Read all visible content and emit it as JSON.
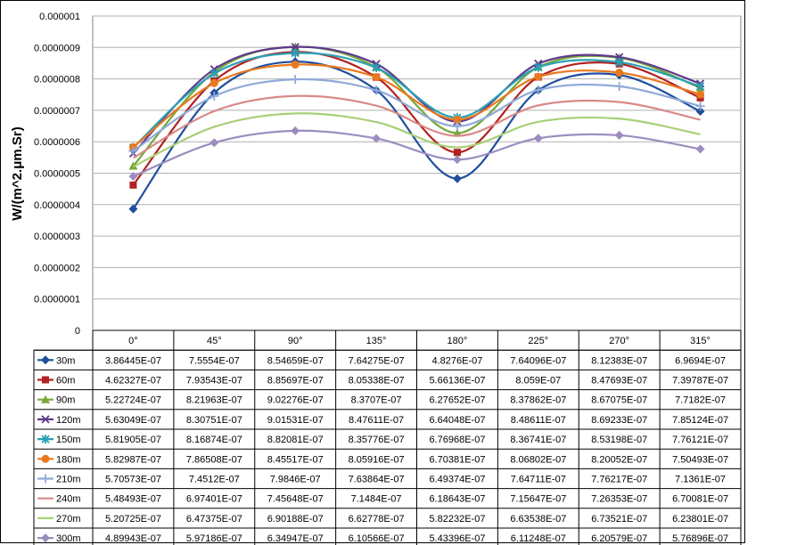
{
  "chart_data": {
    "type": "line",
    "ylabel": "W/(m^2.μm.Sr)",
    "ylim": [
      0,
      1e-06
    ],
    "yticks": [
      "0",
      "0.0000001",
      "0.0000002",
      "0.0000003",
      "0.0000004",
      "0.0000005",
      "0.0000006",
      "0.0000007",
      "0.0000008",
      "0.0000009",
      "0.000001"
    ],
    "ytick_values": [
      0,
      1e-07,
      2e-07,
      3e-07,
      4e-07,
      5e-07,
      6e-07,
      7e-07,
      8e-07,
      9e-07,
      1e-06
    ],
    "categories": [
      "0°",
      "45°",
      "90°",
      "135°",
      "180°",
      "225°",
      "270°",
      "315°"
    ],
    "grid": true,
    "legend": "data-table",
    "series": [
      {
        "name": "30m",
        "color": "#1f4e9c",
        "marker": "diamond",
        "values": [
          3.86445e-07,
          7.5554e-07,
          8.54659e-07,
          7.64275e-07,
          4.8276e-07,
          7.64096e-07,
          8.12383e-07,
          6.9694e-07
        ],
        "labels": [
          "3.86445E-07",
          "7.5554E-07",
          "8.54659E-07",
          "7.64275E-07",
          "4.8276E-07",
          "7.64096E-07",
          "8.12383E-07",
          "6.9694E-07"
        ]
      },
      {
        "name": "60m",
        "color": "#b22222",
        "marker": "square",
        "values": [
          4.62327e-07,
          7.93543e-07,
          8.85697e-07,
          8.05338e-07,
          5.66136e-07,
          8.059e-07,
          8.47693e-07,
          7.39787e-07
        ],
        "labels": [
          "4.62327E-07",
          "7.93543E-07",
          "8.85697E-07",
          "8.05338E-07",
          "5.66136E-07",
          "8.059E-07",
          "8.47693E-07",
          "7.39787E-07"
        ]
      },
      {
        "name": "90m",
        "color": "#76a83a",
        "marker": "triangle",
        "values": [
          5.22724e-07,
          8.21963e-07,
          9.02276e-07,
          8.3707e-07,
          6.27652e-07,
          8.37862e-07,
          8.67075e-07,
          7.7182e-07
        ],
        "labels": [
          "5.22724E-07",
          "8.21963E-07",
          "9.02276E-07",
          "8.3707E-07",
          "6.27652E-07",
          "8.37862E-07",
          "8.67075E-07",
          "7.7182E-07"
        ]
      },
      {
        "name": "120m",
        "color": "#5e3a8c",
        "marker": "x",
        "values": [
          5.63049e-07,
          8.30751e-07,
          9.01531e-07,
          8.47611e-07,
          6.64048e-07,
          8.48611e-07,
          8.69233e-07,
          7.85124e-07
        ],
        "labels": [
          "5.63049E-07",
          "8.30751E-07",
          "9.01531E-07",
          "8.47611E-07",
          "6.64048E-07",
          "8.48611E-07",
          "8.69233E-07",
          "7.85124E-07"
        ]
      },
      {
        "name": "150m",
        "color": "#2aa0b4",
        "marker": "star",
        "values": [
          5.81905e-07,
          8.16874e-07,
          8.82081e-07,
          8.35776e-07,
          6.76968e-07,
          8.36741e-07,
          8.53198e-07,
          7.76121e-07
        ],
        "labels": [
          "5.81905E-07",
          "8.16874E-07",
          "8.82081E-07",
          "8.35776E-07",
          "6.76968E-07",
          "8.36741E-07",
          "8.53198E-07",
          "7.76121E-07"
        ]
      },
      {
        "name": "180m",
        "color": "#e8791e",
        "marker": "circle",
        "values": [
          5.82987e-07,
          7.86508e-07,
          8.45517e-07,
          8.05916e-07,
          6.70381e-07,
          8.06802e-07,
          8.20052e-07,
          7.50493e-07
        ],
        "labels": [
          "5.82987E-07",
          "7.86508E-07",
          "8.45517E-07",
          "8.05916E-07",
          "6.70381E-07",
          "8.06802E-07",
          "8.20052E-07",
          "7.50493E-07"
        ]
      },
      {
        "name": "210m",
        "color": "#8faad8",
        "marker": "plus",
        "values": [
          5.70573e-07,
          7.4512e-07,
          7.9846e-07,
          7.63864e-07,
          6.49374e-07,
          7.64711e-07,
          7.76217e-07,
          7.1361e-07
        ],
        "labels": [
          "5.70573E-07",
          "7.4512E-07",
          "7.9846E-07",
          "7.63864E-07",
          "6.49374E-07",
          "7.64711E-07",
          "7.76217E-07",
          "7.1361E-07"
        ]
      },
      {
        "name": "240m",
        "color": "#d88a88",
        "marker": "none",
        "values": [
          5.48493e-07,
          6.97401e-07,
          7.45648e-07,
          7.1484e-07,
          6.18643e-07,
          7.15647e-07,
          7.26353e-07,
          6.70081e-07
        ],
        "labels": [
          "5.48493E-07",
          "6.97401E-07",
          "7.45648E-07",
          "7.1484E-07",
          "6.18643E-07",
          "7.15647E-07",
          "7.26353E-07",
          "6.70081E-07"
        ]
      },
      {
        "name": "270m",
        "color": "#a8cf78",
        "marker": "none",
        "values": [
          5.20725e-07,
          6.47375e-07,
          6.90188e-07,
          6.62778e-07,
          5.82232e-07,
          6.63538e-07,
          6.73521e-07,
          6.23801e-07
        ],
        "labels": [
          "5.20725E-07",
          "6.47375E-07",
          "6.90188E-07",
          "6.62778E-07",
          "5.82232E-07",
          "6.63538E-07",
          "6.73521E-07",
          "6.23801E-07"
        ]
      },
      {
        "name": "300m",
        "color": "#9c8dbf",
        "marker": "diamond",
        "values": [
          4.89943e-07,
          5.97186e-07,
          6.34947e-07,
          6.10566e-07,
          5.43396e-07,
          6.11248e-07,
          6.20579e-07,
          5.76896e-07
        ],
        "labels": [
          "4.89943E-07",
          "5.97186E-07",
          "6.34947E-07",
          "6.10566E-07",
          "5.43396E-07",
          "6.11248E-07",
          "6.20579E-07",
          "5.76896E-07"
        ]
      }
    ]
  }
}
